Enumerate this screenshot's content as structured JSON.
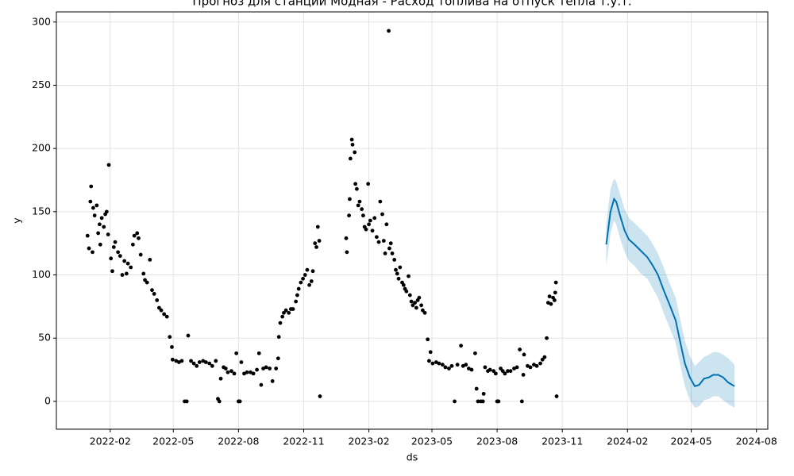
{
  "chart_data": {
    "type": "line",
    "title": "Прогноз для станции Модная - Расход топлива на отпуск тепла т.у.т.",
    "xlabel": "ds",
    "ylabel": "y",
    "xlim": [
      "2021-11-17",
      "2024-08-17"
    ],
    "ylim": [
      -22,
      308
    ],
    "xticks": [
      {
        "value": "2022-02-01",
        "label": "2022-02"
      },
      {
        "value": "2022-05-01",
        "label": "2022-05"
      },
      {
        "value": "2022-08-01",
        "label": "2022-08"
      },
      {
        "value": "2022-11-01",
        "label": "2022-11"
      },
      {
        "value": "2023-02-01",
        "label": "2023-02"
      },
      {
        "value": "2023-05-01",
        "label": "2023-05"
      },
      {
        "value": "2023-08-01",
        "label": "2023-08"
      },
      {
        "value": "2023-11-01",
        "label": "2023-11"
      },
      {
        "value": "2024-02-01",
        "label": "2024-02"
      },
      {
        "value": "2024-05-01",
        "label": "2024-05"
      },
      {
        "value": "2024-08-01",
        "label": "2024-08"
      }
    ],
    "yticks": [
      0,
      50,
      100,
      150,
      200,
      250,
      300
    ],
    "grid": true,
    "series": [
      {
        "type": "scatter",
        "color": "#000000",
        "x": [
          "2021-12-31",
          "2022-01-02",
          "2022-01-04",
          "2022-01-05",
          "2022-01-07",
          "2022-01-08",
          "2022-01-10",
          "2022-01-13",
          "2022-01-15",
          "2022-01-17",
          "2022-01-18",
          "2022-01-20",
          "2022-01-23",
          "2022-01-25",
          "2022-01-27",
          "2022-01-29",
          "2022-01-30",
          "2022-02-02",
          "2022-02-04",
          "2022-02-06",
          "2022-02-08",
          "2022-02-12",
          "2022-02-15",
          "2022-02-18",
          "2022-02-21",
          "2022-02-24",
          "2022-02-26",
          "2022-03-02",
          "2022-03-05",
          "2022-03-07",
          "2022-03-11",
          "2022-03-13",
          "2022-03-16",
          "2022-03-20",
          "2022-03-22",
          "2022-03-25",
          "2022-03-29",
          "2022-04-01",
          "2022-04-04",
          "2022-04-08",
          "2022-04-11",
          "2022-04-14",
          "2022-04-18",
          "2022-04-22",
          "2022-04-26",
          "2022-04-29",
          "2022-04-30",
          "2022-05-05",
          "2022-05-09",
          "2022-05-13",
          "2022-05-17",
          "2022-05-20",
          "2022-05-22",
          "2022-05-26",
          "2022-05-30",
          "2022-06-03",
          "2022-06-07",
          "2022-06-12",
          "2022-06-16",
          "2022-06-21",
          "2022-06-25",
          "2022-06-30",
          "2022-07-03",
          "2022-07-05",
          "2022-07-07",
          "2022-07-11",
          "2022-07-14",
          "2022-07-17",
          "2022-07-22",
          "2022-07-26",
          "2022-07-29",
          "2022-08-01",
          "2022-08-03",
          "2022-08-05",
          "2022-08-09",
          "2022-08-13",
          "2022-08-18",
          "2022-08-22",
          "2022-08-27",
          "2022-08-30",
          "2022-09-02",
          "2022-09-05",
          "2022-09-09",
          "2022-09-14",
          "2022-09-18",
          "2022-09-23",
          "2022-09-26",
          "2022-09-27",
          "2022-09-29",
          "2022-10-02",
          "2022-10-04",
          "2022-10-07",
          "2022-10-11",
          "2022-10-14",
          "2022-10-17",
          "2022-10-21",
          "2022-10-23",
          "2022-10-25",
          "2022-10-28",
          "2022-10-31",
          "2022-11-03",
          "2022-11-06",
          "2022-11-09",
          "2022-11-12",
          "2022-11-14",
          "2022-11-17",
          "2022-11-19",
          "2022-11-21",
          "2022-11-23",
          "2022-11-24",
          "2022-12-31",
          "2023-01-01",
          "2023-01-04",
          "2023-01-05",
          "2023-01-06",
          "2023-01-08",
          "2023-01-09",
          "2023-01-12",
          "2023-01-13",
          "2023-01-15",
          "2023-01-17",
          "2023-01-19",
          "2023-01-22",
          "2023-01-24",
          "2023-01-26",
          "2023-01-28",
          "2023-01-31",
          "2023-02-01",
          "2023-02-03",
          "2023-02-06",
          "2023-02-09",
          "2023-02-12",
          "2023-02-15",
          "2023-02-17",
          "2023-02-20",
          "2023-02-22",
          "2023-02-24",
          "2023-02-26",
          "2023-03-01",
          "2023-03-02",
          "2023-03-04",
          "2023-03-06",
          "2023-03-09",
          "2023-03-11",
          "2023-03-13",
          "2023-03-15",
          "2023-03-17",
          "2023-03-20",
          "2023-03-22",
          "2023-03-24",
          "2023-03-26",
          "2023-03-29",
          "2023-03-31",
          "2023-04-02",
          "2023-04-04",
          "2023-04-07",
          "2023-04-09",
          "2023-04-11",
          "2023-04-13",
          "2023-04-16",
          "2023-04-18",
          "2023-04-21",
          "2023-04-25",
          "2023-04-27",
          "2023-04-29",
          "2023-05-02",
          "2023-05-07",
          "2023-05-11",
          "2023-05-16",
          "2023-05-20",
          "2023-05-25",
          "2023-05-29",
          "2023-06-02",
          "2023-06-06",
          "2023-06-11",
          "2023-06-14",
          "2023-06-18",
          "2023-06-22",
          "2023-06-26",
          "2023-07-01",
          "2023-07-03",
          "2023-07-05",
          "2023-07-09",
          "2023-07-12",
          "2023-07-13",
          "2023-07-15",
          "2023-07-19",
          "2023-07-22",
          "2023-07-27",
          "2023-07-30",
          "2023-08-01",
          "2023-08-03",
          "2023-08-06",
          "2023-08-09",
          "2023-08-12",
          "2023-08-16",
          "2023-08-20",
          "2023-08-25",
          "2023-08-29",
          "2023-09-02",
          "2023-09-05",
          "2023-09-07",
          "2023-09-08",
          "2023-09-13",
          "2023-09-17",
          "2023-09-22",
          "2023-09-26",
          "2023-10-01",
          "2023-10-04",
          "2023-10-07",
          "2023-10-10",
          "2023-10-12",
          "2023-10-14",
          "2023-10-16",
          "2023-10-19",
          "2023-10-21",
          "2023-10-22",
          "2023-10-23",
          "2023-10-24"
        ],
        "values": [
          131,
          121,
          158,
          170,
          118,
          153,
          147,
          155,
          133,
          140,
          124,
          145,
          138,
          148,
          150,
          132,
          187,
          113,
          103,
          122,
          126,
          118,
          115,
          100,
          111,
          101,
          109,
          106,
          124,
          131,
          133,
          129,
          116,
          101,
          96,
          94,
          112,
          88,
          85,
          80,
          74,
          72,
          69,
          67,
          51,
          43,
          33,
          32,
          31,
          32,
          0,
          0,
          52,
          32,
          30,
          28,
          31,
          32,
          31,
          30,
          28,
          32,
          2,
          0,
          18,
          27,
          26,
          23,
          24,
          22,
          38,
          0,
          0,
          31,
          22,
          23,
          23,
          22,
          25,
          38,
          13,
          26,
          27,
          26,
          16,
          26,
          34,
          51,
          62,
          67,
          70,
          72,
          70,
          73,
          73,
          79,
          84,
          89,
          94,
          97,
          100,
          104,
          92,
          95,
          103,
          125,
          122,
          138,
          127,
          4,
          129,
          118,
          147,
          160,
          192,
          207,
          203,
          197,
          172,
          168,
          155,
          158,
          152,
          147,
          138,
          136,
          172,
          140,
          143,
          135,
          145,
          130,
          126,
          158,
          148,
          127,
          117,
          140,
          293,
          121,
          125,
          117,
          112,
          104,
          101,
          97,
          106,
          94,
          92,
          89,
          87,
          99,
          84,
          79,
          76,
          78,
          74,
          80,
          82,
          76,
          72,
          70,
          49,
          32,
          39,
          30,
          31,
          30,
          29,
          27,
          26,
          28,
          0,
          29,
          44,
          28,
          29,
          26,
          25,
          38,
          10,
          0,
          0,
          0,
          6,
          27,
          24,
          25,
          24,
          22,
          0,
          0,
          26,
          24,
          22,
          24,
          24,
          26,
          27,
          41,
          0,
          21,
          37,
          28,
          27,
          29,
          28,
          30,
          33,
          35,
          50,
          78,
          83,
          77,
          82,
          80,
          86,
          94,
          4
        ]
      },
      {
        "type": "line",
        "color": "#0072B2",
        "x": [
          "2024-01-02",
          "2024-01-08",
          "2024-01-13",
          "2024-01-16",
          "2024-01-22",
          "2024-01-28",
          "2024-02-03",
          "2024-02-11",
          "2024-02-20",
          "2024-02-29",
          "2024-03-07",
          "2024-03-15",
          "2024-03-23",
          "2024-03-31",
          "2024-04-09",
          "2024-04-15",
          "2024-04-22",
          "2024-04-29",
          "2024-05-06",
          "2024-05-12",
          "2024-05-19",
          "2024-05-26",
          "2024-06-01",
          "2024-06-08",
          "2024-06-15",
          "2024-06-22",
          "2024-07-01"
        ],
        "values": [
          124,
          150,
          160,
          158,
          146,
          135,
          128,
          124,
          119,
          114,
          108,
          100,
          88,
          77,
          64,
          48,
          30,
          19,
          12,
          13,
          18,
          19,
          21,
          21,
          19,
          15,
          12
        ],
        "lower": [
          107,
          133,
          143,
          140,
          128,
          118,
          111,
          107,
          101,
          97,
          90,
          82,
          70,
          59,
          46,
          30,
          12,
          1,
          -5,
          -4,
          1,
          2,
          4,
          4,
          1,
          -2,
          -5
        ],
        "upper": [
          140,
          168,
          176,
          174,
          163,
          152,
          145,
          141,
          136,
          131,
          125,
          117,
          106,
          94,
          82,
          66,
          48,
          36,
          28,
          31,
          35,
          37,
          39,
          39,
          37,
          34,
          29
        ]
      }
    ]
  }
}
